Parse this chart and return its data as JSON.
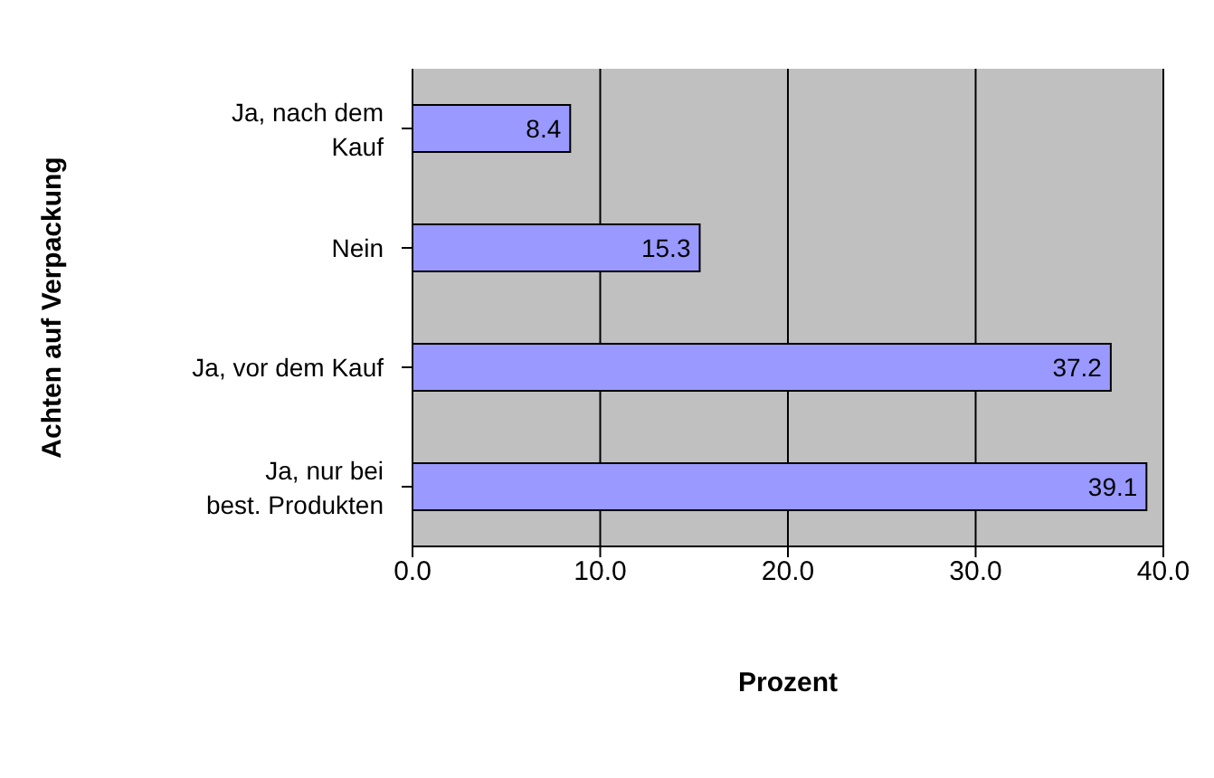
{
  "chart_data": {
    "type": "bar",
    "orientation": "horizontal",
    "xlabel": "Prozent",
    "ylabel": "Achten auf Verpackung",
    "categories": [
      "Ja, nach dem Kauf",
      "Nein",
      "Ja, vor dem Kauf",
      "Ja, nur bei best. Produkten"
    ],
    "values": [
      8.4,
      15.3,
      37.2,
      39.1
    ],
    "color": "#9999ff",
    "xlim": [
      0,
      40
    ],
    "xticks": [
      {
        "value": 0,
        "label": "0.0"
      },
      {
        "value": 10,
        "label": "10.0"
      },
      {
        "value": 20,
        "label": "20.0"
      },
      {
        "value": 30,
        "label": "30.0"
      },
      {
        "value": 40,
        "label": "40.0"
      }
    ],
    "grid": "x",
    "data_labels": true
  }
}
